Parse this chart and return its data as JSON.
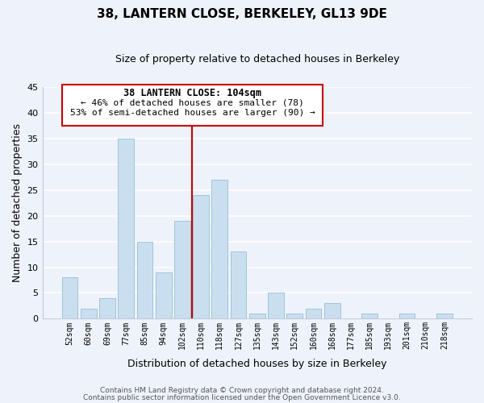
{
  "title": "38, LANTERN CLOSE, BERKELEY, GL13 9DE",
  "subtitle": "Size of property relative to detached houses in Berkeley",
  "xlabel": "Distribution of detached houses by size in Berkeley",
  "ylabel": "Number of detached properties",
  "bar_labels": [
    "52sqm",
    "60sqm",
    "69sqm",
    "77sqm",
    "85sqm",
    "94sqm",
    "102sqm",
    "110sqm",
    "118sqm",
    "127sqm",
    "135sqm",
    "143sqm",
    "152sqm",
    "160sqm",
    "168sqm",
    "177sqm",
    "185sqm",
    "193sqm",
    "201sqm",
    "210sqm",
    "218sqm"
  ],
  "bar_values": [
    8,
    2,
    4,
    35,
    15,
    9,
    19,
    24,
    27,
    13,
    1,
    5,
    1,
    2,
    3,
    0,
    1,
    0,
    1,
    0,
    1
  ],
  "bar_color": "#c9dff0",
  "bar_edge_color": "#a0c4d8",
  "ref_line_color": "#cc0000",
  "annotation_title": "38 LANTERN CLOSE: 104sqm",
  "annotation_line1": "← 46% of detached houses are smaller (78)",
  "annotation_line2": "53% of semi-detached houses are larger (90) →",
  "annotation_box_color": "#ffffff",
  "annotation_box_edge_color": "#cc0000",
  "ylim": [
    0,
    45
  ],
  "yticks": [
    0,
    5,
    10,
    15,
    20,
    25,
    30,
    35,
    40,
    45
  ],
  "footer1": "Contains HM Land Registry data © Crown copyright and database right 2024.",
  "footer2": "Contains public sector information licensed under the Open Government Licence v3.0.",
  "bg_color": "#eef2fb",
  "grid_color": "#ffffff",
  "spine_color": "#c0c8d8"
}
